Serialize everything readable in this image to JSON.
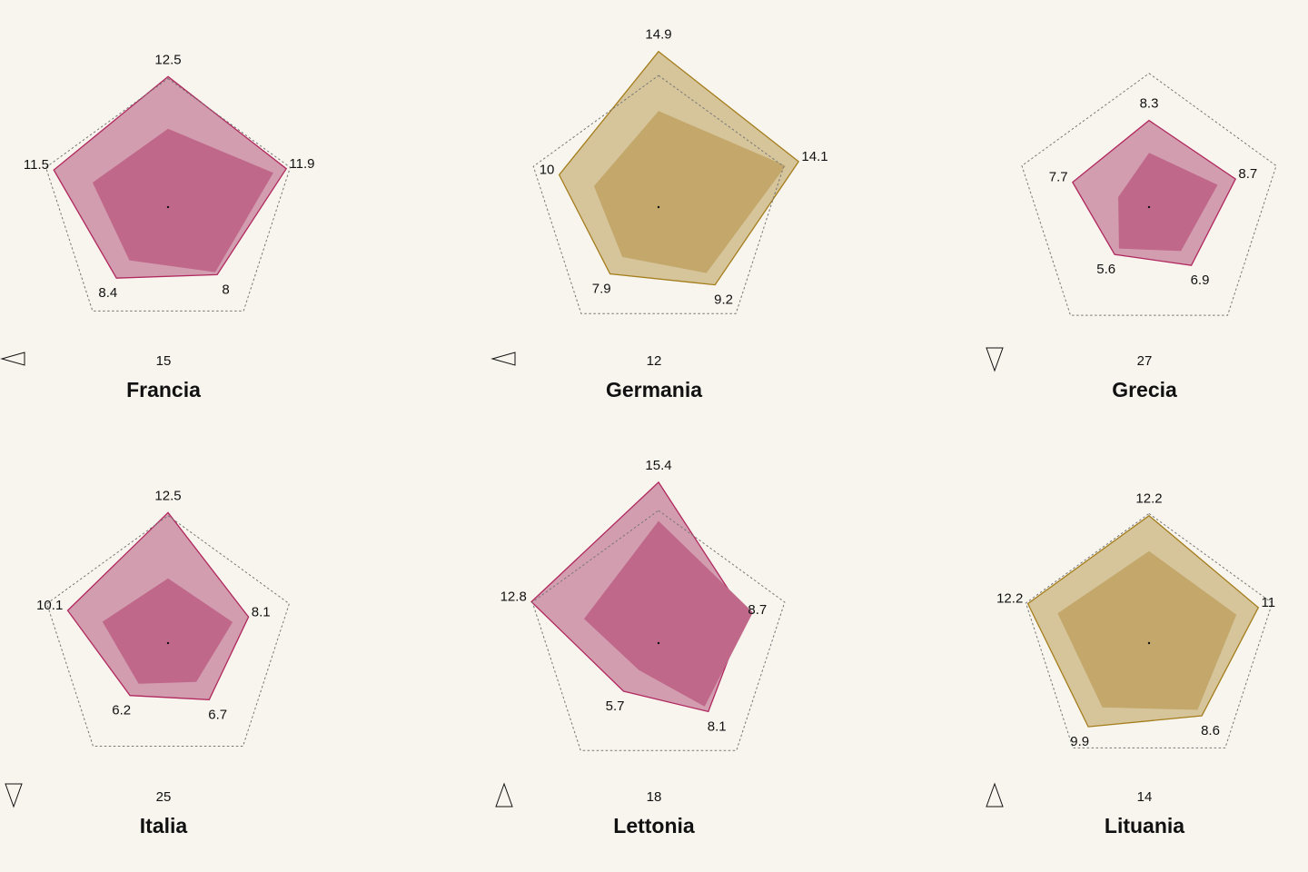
{
  "colors": {
    "background": "#f8f5ee",
    "pink_outer": "#d39db0",
    "pink_inner": "#c0688a",
    "pink_stroke": "#b0285e",
    "gold_outer": "#d6c49a",
    "gold_inner": "#c3a76b",
    "gold_stroke": "#a47d1c",
    "reference_stroke": "#777777"
  },
  "chart_data": [
    {
      "type": "radar",
      "country": "Francia",
      "rank": "15",
      "trend": "left",
      "palette": "pink",
      "outer_values": [
        12.5,
        11.9,
        8,
        8.4,
        11.5
      ],
      "outer_labels": [
        "12.5",
        "11.9",
        "8",
        "8.4",
        "11.5"
      ],
      "inner_values": [
        7.5,
        10.6,
        7.7,
        6.3,
        7.6
      ],
      "reference_values": [
        12.3,
        12.3,
        12.3,
        12.3,
        12.3
      ]
    },
    {
      "type": "radar",
      "country": "Germania",
      "rank": "12",
      "trend": "left",
      "palette": "gold",
      "outer_values": [
        14.9,
        14.1,
        9.2,
        7.9,
        10
      ],
      "outer_labels": [
        "14.9",
        "14.1",
        "9.2",
        "7.9",
        "10"
      ],
      "inner_values": [
        9.2,
        12.8,
        7.8,
        5.9,
        6.5
      ],
      "reference_values": [
        12.6,
        12.6,
        12.6,
        12.6,
        12.6
      ]
    },
    {
      "type": "radar",
      "country": "Grecia",
      "rank": "27",
      "trend": "down",
      "palette": "pink",
      "outer_values": [
        8.3,
        8.7,
        6.9,
        5.6,
        7.7
      ],
      "outer_labels": [
        "8.3",
        "8.7",
        "6.9",
        "5.6",
        "7.7"
      ],
      "inner_values": [
        5.2,
        6.9,
        5.2,
        4.9,
        3.1
      ],
      "reference_values": [
        12.8,
        12.8,
        12.8,
        12.8,
        12.8
      ]
    },
    {
      "type": "radar",
      "country": "Italia",
      "rank": "25",
      "trend": "down",
      "palette": "pink",
      "outer_values": [
        12.5,
        8.1,
        6.7,
        6.2,
        10.1
      ],
      "outer_labels": [
        "12.5",
        "8.1",
        "6.7",
        "6.2",
        "10.1"
      ],
      "inner_values": [
        6.2,
        6.5,
        4.6,
        4.8,
        6.6
      ],
      "reference_values": [
        12.2,
        12.2,
        12.2,
        12.2,
        12.2
      ]
    },
    {
      "type": "radar",
      "country": "Lettonia",
      "rank": "18",
      "trend": "up",
      "palette": "pink",
      "outer_values": [
        15.4,
        8.7,
        8.1,
        5.7,
        12.8
      ],
      "outer_labels": [
        "15.4",
        "8.7",
        "8.1",
        "5.7",
        "12.8"
      ],
      "inner_values": [
        11.7,
        9.5,
        7.5,
        3.2,
        7.5
      ],
      "reference_values": [
        12.7,
        12.7,
        12.7,
        12.7,
        12.7
      ]
    },
    {
      "type": "radar",
      "country": "Lituania",
      "rank": "14",
      "trend": "up",
      "palette": "gold",
      "outer_values": [
        12.2,
        11,
        8.6,
        9.9,
        12.2
      ],
      "outer_labels": [
        "12.2",
        "11",
        "8.6",
        "9.9",
        "12.2"
      ],
      "inner_values": [
        8.8,
        8.8,
        7.9,
        7.6,
        9.2
      ],
      "reference_values": [
        12.4,
        12.4,
        12.4,
        12.4,
        12.4
      ]
    }
  ]
}
